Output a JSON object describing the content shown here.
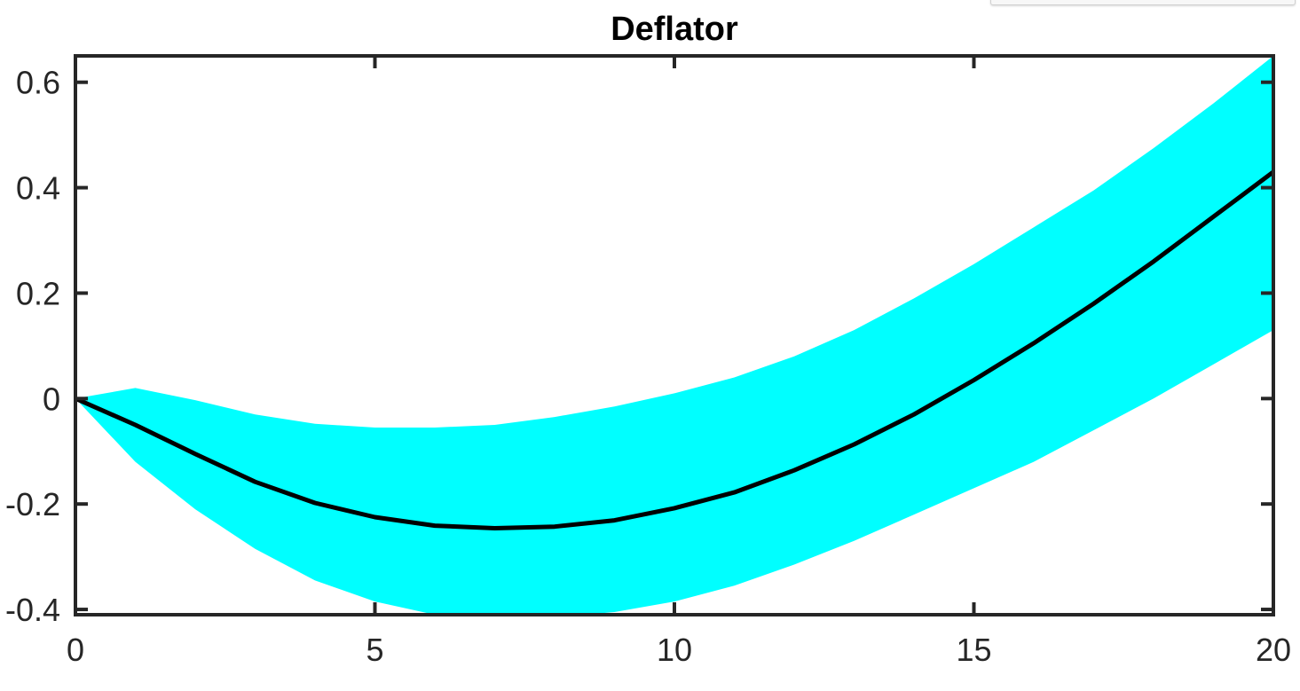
{
  "chart_data": {
    "type": "area",
    "title": "Deflator",
    "xlabel": "",
    "ylabel": "",
    "xlim": [
      0,
      20
    ],
    "ylim": [
      -0.41,
      0.65
    ],
    "x_ticks": [
      0,
      5,
      10,
      15,
      20
    ],
    "y_ticks": [
      -0.4,
      -0.2,
      0,
      0.2,
      0.4,
      0.6
    ],
    "x_tick_labels": [
      "0",
      "5",
      "10",
      "15",
      "20"
    ],
    "y_tick_labels": [
      "-0.4",
      "-0.2",
      "0",
      "0.2",
      "0.4",
      "0.6"
    ],
    "grid": false,
    "x": [
      0,
      1,
      2,
      3,
      4,
      5,
      6,
      7,
      8,
      9,
      10,
      11,
      12,
      13,
      14,
      15,
      16,
      17,
      18,
      19,
      20
    ],
    "series": [
      {
        "role": "median",
        "color": "#000000",
        "values": [
          0.0,
          -0.05,
          -0.105,
          -0.158,
          -0.198,
          -0.225,
          -0.241,
          -0.246,
          -0.243,
          -0.231,
          -0.208,
          -0.178,
          -0.136,
          -0.087,
          -0.03,
          0.035,
          0.105,
          0.18,
          0.26,
          0.345,
          0.43
        ]
      },
      {
        "role": "band-upper",
        "color": "#00ffff",
        "values": [
          0.0,
          0.02,
          -0.003,
          -0.03,
          -0.048,
          -0.055,
          -0.055,
          -0.05,
          -0.035,
          -0.015,
          0.01,
          0.04,
          0.08,
          0.13,
          0.19,
          0.255,
          0.325,
          0.395,
          0.475,
          0.56,
          0.65
        ]
      },
      {
        "role": "band-lower",
        "color": "#00ffff",
        "values": [
          0.0,
          -0.12,
          -0.21,
          -0.285,
          -0.345,
          -0.385,
          -0.41,
          -0.415,
          -0.415,
          -0.405,
          -0.385,
          -0.355,
          -0.315,
          -0.27,
          -0.22,
          -0.17,
          -0.12,
          -0.06,
          0.0,
          0.065,
          0.13
        ]
      }
    ],
    "band_color": "#00ffff",
    "line_color": "#000000",
    "axis_color": "#262626"
  }
}
